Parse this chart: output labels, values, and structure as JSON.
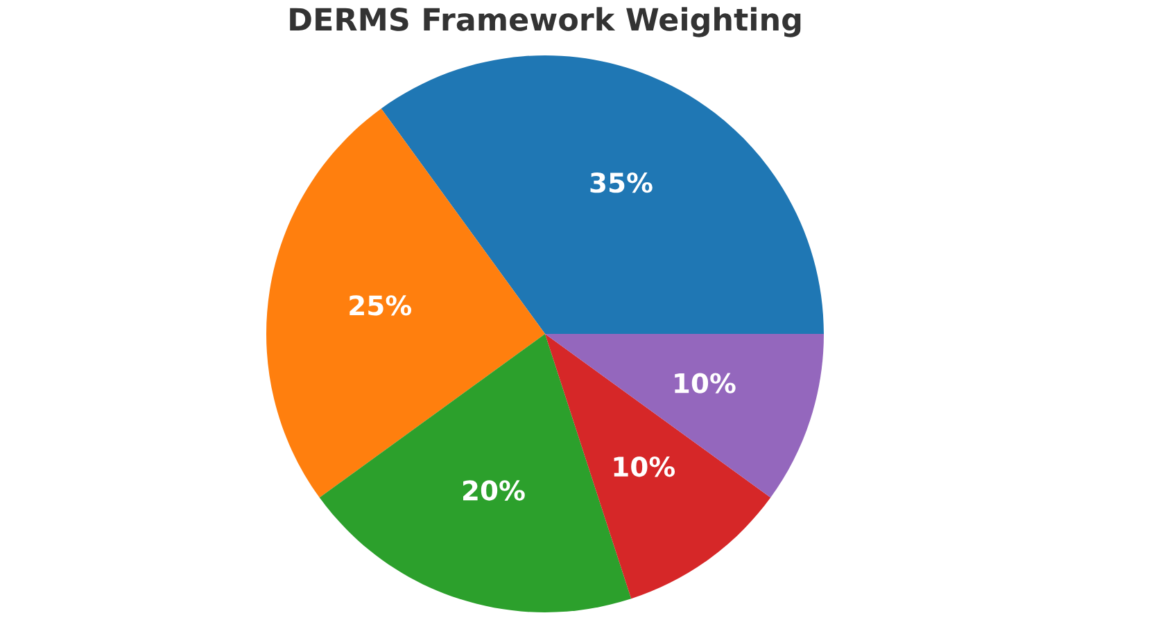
{
  "chart_data": {
    "type": "pie",
    "title": "DERMS Framework Weighting",
    "categories": [
      null,
      null,
      null,
      null,
      null
    ],
    "values": [
      35,
      25,
      20,
      10,
      10
    ],
    "colors": [
      "#1f77b4",
      "#ff7f0e",
      "#2ca02c",
      "#d62728",
      "#9467bd"
    ],
    "value_labels": [
      "35%",
      "25%",
      "20%",
      "10%",
      "10%"
    ]
  }
}
